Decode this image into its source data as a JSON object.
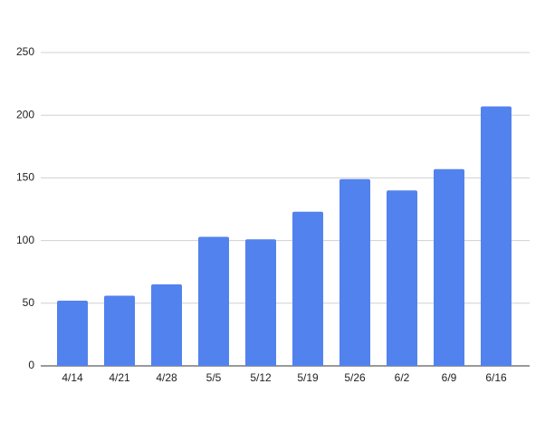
{
  "chart_data": {
    "type": "bar",
    "categories": [
      "4/14",
      "4/21",
      "4/28",
      "5/5",
      "5/12",
      "5/19",
      "5/26",
      "6/2",
      "6/9",
      "6/16"
    ],
    "values": [
      52,
      56,
      65,
      103,
      101,
      123,
      149,
      140,
      157,
      207
    ],
    "color": "#5282ee",
    "ylim": [
      0,
      250
    ],
    "yticks": [
      0,
      50,
      100,
      150,
      200,
      250
    ],
    "grid": true
  }
}
